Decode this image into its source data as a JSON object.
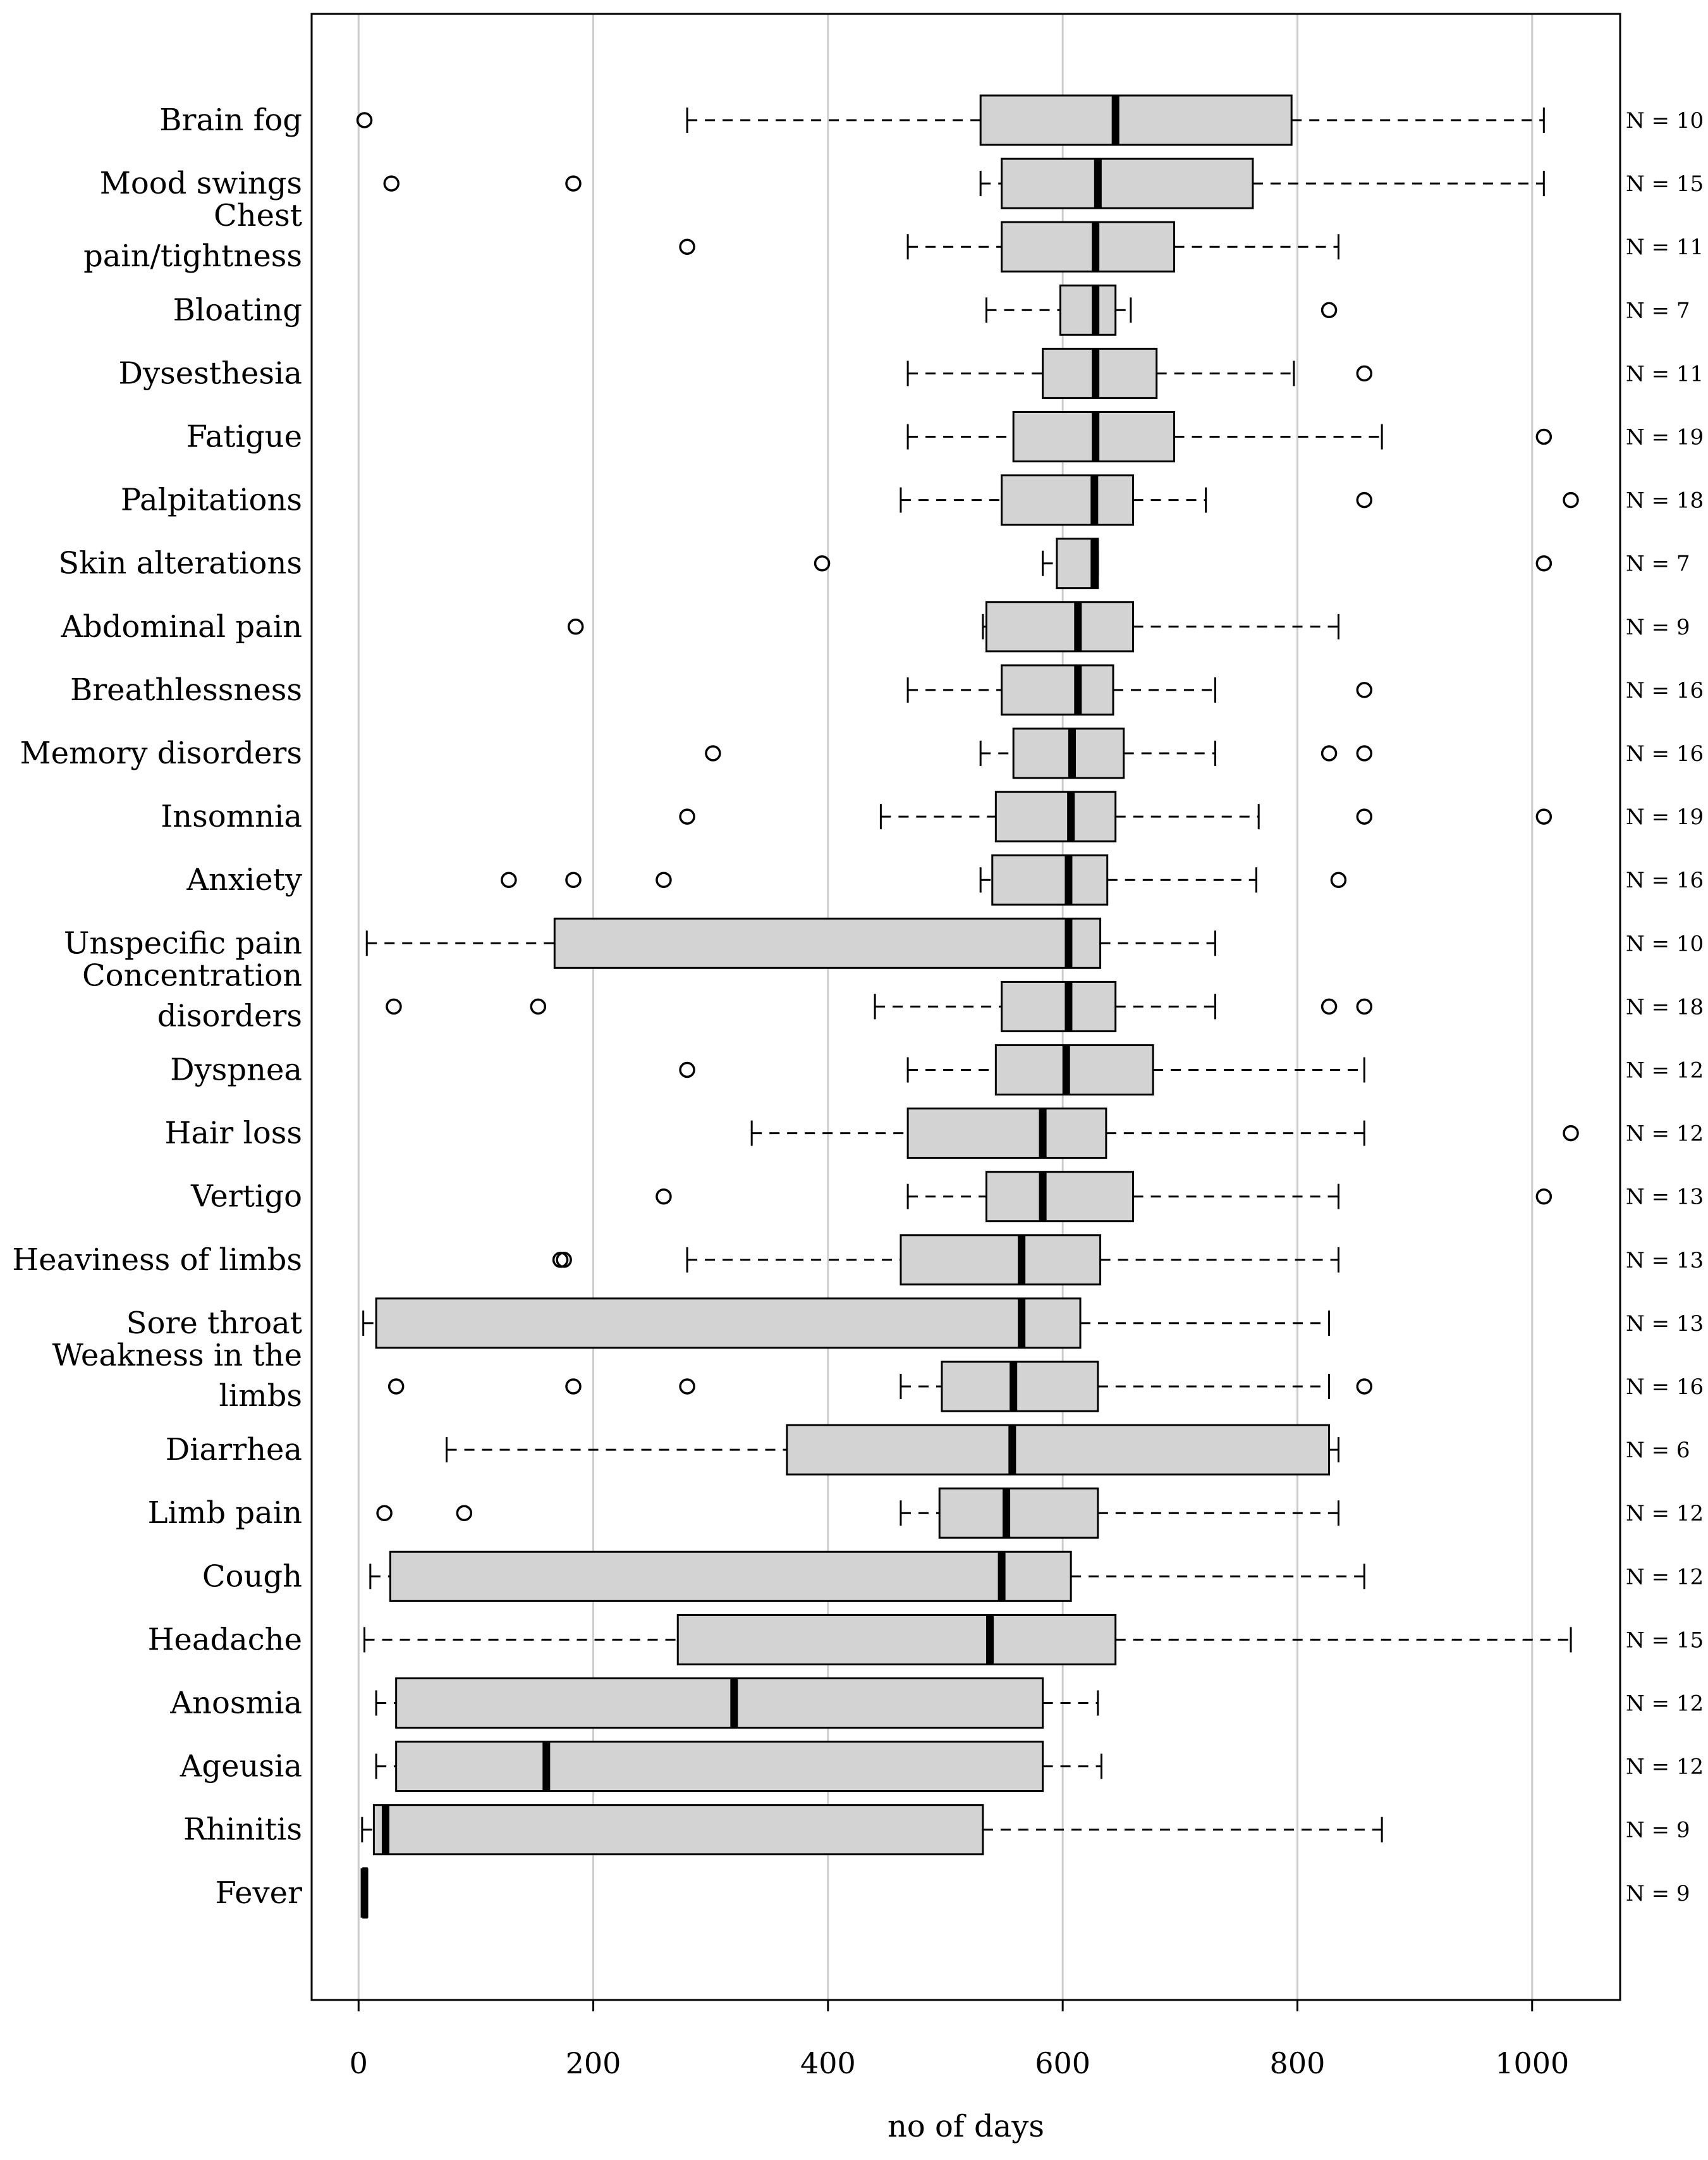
{
  "chart_data": {
    "type": "boxplot",
    "orientation": "horizontal",
    "title": "",
    "xlabel": "no of days",
    "ylabel": "",
    "xlim": [
      -40,
      1075
    ],
    "xticks": [
      0,
      200,
      400,
      600,
      800,
      1000
    ],
    "xtick_labels": [
      "0",
      "200",
      "400",
      "600",
      "800",
      "1000"
    ],
    "grid": "vertical",
    "colors": {
      "box_fill": "#d3d3d3",
      "stroke": "#000000",
      "grid": "#cccccc"
    },
    "categories": [
      {
        "label": [
          "Brain fog"
        ],
        "n": "N = 10",
        "whisker_low": 280,
        "q1": 530,
        "median": 645,
        "q3": 795,
        "whisker_high": 1010,
        "outliers": [
          5
        ]
      },
      {
        "label": [
          "Mood swings"
        ],
        "n": "N = 15",
        "whisker_low": 530,
        "q1": 548,
        "median": 630,
        "q3": 762,
        "whisker_high": 1010,
        "outliers": [
          28,
          183
        ]
      },
      {
        "label": [
          "Chest",
          "pain/tightness"
        ],
        "n": "N = 11",
        "whisker_low": 468,
        "q1": 548,
        "median": 628,
        "q3": 695,
        "whisker_high": 835,
        "outliers": [
          280
        ]
      },
      {
        "label": [
          "Bloating"
        ],
        "n": "N = 7",
        "whisker_low": 535,
        "q1": 598,
        "median": 628,
        "q3": 645,
        "whisker_high": 658,
        "outliers": [
          827
        ]
      },
      {
        "label": [
          "Dysesthesia"
        ],
        "n": "N = 11",
        "whisker_low": 468,
        "q1": 583,
        "median": 628,
        "q3": 680,
        "whisker_high": 797,
        "outliers": [
          857
        ]
      },
      {
        "label": [
          "Fatigue"
        ],
        "n": "N = 19",
        "whisker_low": 468,
        "q1": 558,
        "median": 628,
        "q3": 695,
        "whisker_high": 872,
        "outliers": [
          1010
        ]
      },
      {
        "label": [
          "Palpitations"
        ],
        "n": "N = 18",
        "whisker_low": 462,
        "q1": 548,
        "median": 627,
        "q3": 660,
        "whisker_high": 722,
        "outliers": [
          857,
          1033
        ]
      },
      {
        "label": [
          "Skin alterations"
        ],
        "n": "N = 7",
        "whisker_low": 583,
        "q1": 595,
        "median": 627,
        "q3": 630,
        "whisker_high": 630,
        "outliers": [
          395,
          1010
        ]
      },
      {
        "label": [
          "Abdominal pain"
        ],
        "n": "N = 9",
        "whisker_low": 532,
        "q1": 535,
        "median": 613,
        "q3": 660,
        "whisker_high": 835,
        "outliers": [
          185
        ]
      },
      {
        "label": [
          "Breathlessness"
        ],
        "n": "N = 16",
        "whisker_low": 468,
        "q1": 548,
        "median": 613,
        "q3": 643,
        "whisker_high": 730,
        "outliers": [
          857
        ]
      },
      {
        "label": [
          "Memory disorders"
        ],
        "n": "N = 16",
        "whisker_low": 530,
        "q1": 558,
        "median": 608,
        "q3": 652,
        "whisker_high": 730,
        "outliers": [
          302,
          827,
          857
        ]
      },
      {
        "label": [
          "Insomnia"
        ],
        "n": "N = 19",
        "whisker_low": 445,
        "q1": 543,
        "median": 607,
        "q3": 645,
        "whisker_high": 767,
        "outliers": [
          280,
          857,
          1010
        ]
      },
      {
        "label": [
          "Anxiety"
        ],
        "n": "N = 16",
        "whisker_low": 530,
        "q1": 540,
        "median": 605,
        "q3": 638,
        "whisker_high": 765,
        "outliers": [
          128,
          183,
          260,
          835
        ]
      },
      {
        "label": [
          "Unspecific pain"
        ],
        "n": "N = 10",
        "whisker_low": 7,
        "q1": 167,
        "median": 605,
        "q3": 632,
        "whisker_high": 730,
        "outliers": []
      },
      {
        "label": [
          "Concentration",
          "disorders"
        ],
        "n": "N = 18",
        "whisker_low": 440,
        "q1": 548,
        "median": 605,
        "q3": 645,
        "whisker_high": 730,
        "outliers": [
          30,
          153,
          827,
          857
        ]
      },
      {
        "label": [
          "Dyspnea"
        ],
        "n": "N = 12",
        "whisker_low": 468,
        "q1": 543,
        "median": 603,
        "q3": 677,
        "whisker_high": 857,
        "outliers": [
          280
        ]
      },
      {
        "label": [
          "Hair loss"
        ],
        "n": "N = 12",
        "whisker_low": 335,
        "q1": 468,
        "median": 583,
        "q3": 637,
        "whisker_high": 857,
        "outliers": [
          1033
        ]
      },
      {
        "label": [
          "Vertigo"
        ],
        "n": "N = 13",
        "whisker_low": 468,
        "q1": 535,
        "median": 583,
        "q3": 660,
        "whisker_high": 835,
        "outliers": [
          260,
          1010
        ]
      },
      {
        "label": [
          "Heaviness of limbs"
        ],
        "n": "N = 13",
        "whisker_low": 280,
        "q1": 462,
        "median": 565,
        "q3": 632,
        "whisker_high": 835,
        "outliers": [
          172,
          175
        ]
      },
      {
        "label": [
          "Sore throat"
        ],
        "n": "N = 13",
        "whisker_low": 4,
        "q1": 15,
        "median": 565,
        "q3": 615,
        "whisker_high": 827,
        "outliers": []
      },
      {
        "label": [
          "Weakness in the",
          "limbs"
        ],
        "n": "N = 16",
        "whisker_low": 462,
        "q1": 497,
        "median": 558,
        "q3": 630,
        "whisker_high": 827,
        "outliers": [
          32,
          183,
          280,
          857
        ]
      },
      {
        "label": [
          "Diarrhea"
        ],
        "n": "N = 6",
        "whisker_low": 75,
        "q1": 365,
        "median": 557,
        "q3": 827,
        "whisker_high": 835,
        "outliers": []
      },
      {
        "label": [
          "Limb pain"
        ],
        "n": "N = 12",
        "whisker_low": 462,
        "q1": 495,
        "median": 552,
        "q3": 630,
        "whisker_high": 835,
        "outliers": [
          22,
          90
        ]
      },
      {
        "label": [
          "Cough"
        ],
        "n": "N = 12",
        "whisker_low": 10,
        "q1": 27,
        "median": 548,
        "q3": 607,
        "whisker_high": 857,
        "outliers": []
      },
      {
        "label": [
          "Headache"
        ],
        "n": "N = 15",
        "whisker_low": 5,
        "q1": 272,
        "median": 538,
        "q3": 645,
        "whisker_high": 1033,
        "outliers": []
      },
      {
        "label": [
          "Anosmia"
        ],
        "n": "N = 12",
        "whisker_low": 15,
        "q1": 32,
        "median": 320,
        "q3": 583,
        "whisker_high": 630,
        "outliers": []
      },
      {
        "label": [
          "Ageusia"
        ],
        "n": "N = 12",
        "whisker_low": 15,
        "q1": 32,
        "median": 160,
        "q3": 583,
        "whisker_high": 633,
        "outliers": []
      },
      {
        "label": [
          "Rhinitis"
        ],
        "n": "N = 9",
        "whisker_low": 3,
        "q1": 13,
        "median": 23,
        "q3": 532,
        "whisker_high": 872,
        "outliers": []
      },
      {
        "label": [
          "Fever"
        ],
        "n": "N = 9",
        "whisker_low": 4,
        "q1": 4,
        "median": 5,
        "q3": 7,
        "whisker_high": 7,
        "outliers": []
      }
    ]
  }
}
